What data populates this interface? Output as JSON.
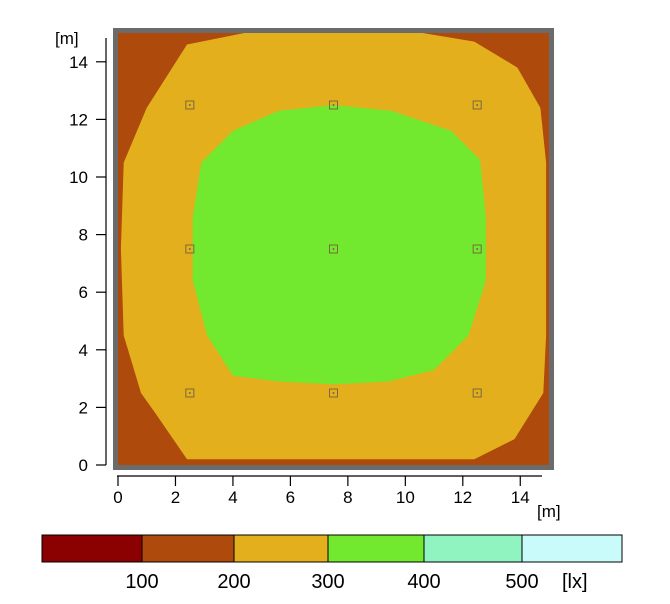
{
  "chart_data": {
    "type": "heatmap",
    "xlabel": "[m]",
    "ylabel": "[m]",
    "xlim": [
      0,
      15
    ],
    "ylim": [
      0,
      15
    ],
    "x_ticks": [
      0,
      2,
      4,
      6,
      8,
      10,
      12,
      14
    ],
    "y_ticks": [
      0,
      2,
      4,
      6,
      8,
      10,
      12,
      14
    ],
    "grid": false,
    "legend": {
      "placement": "bottom",
      "unit": "[lx]",
      "bins": [
        {
          "range": [
            0,
            100
          ],
          "color": "#8b0000"
        },
        {
          "range": [
            100,
            200
          ],
          "color": "#ad4a0c"
        },
        {
          "range": [
            200,
            300
          ],
          "color": "#e4af1c"
        },
        {
          "range": [
            300,
            400
          ],
          "color": "#72e82e"
        },
        {
          "range": [
            400,
            500
          ],
          "color": "#8ff4c0"
        },
        {
          "range": [
            500,
            600
          ],
          "color": "#c8fbfa"
        }
      ],
      "labels": [
        "100",
        "200",
        "300",
        "400",
        "500"
      ]
    },
    "zones": [
      {
        "level": "100-200",
        "color": "#ad4a0c",
        "polygon": [
          [
            0,
            0
          ],
          [
            15,
            0
          ],
          [
            15,
            15
          ],
          [
            0,
            15
          ]
        ]
      },
      {
        "level": "200-300",
        "color": "#e4af1c",
        "polygon": [
          [
            2.4,
            0.2
          ],
          [
            12.4,
            0.2
          ],
          [
            13.8,
            0.9
          ],
          [
            14.8,
            2.5
          ],
          [
            14.9,
            4.5
          ],
          [
            14.9,
            10.5
          ],
          [
            14.7,
            12.4
          ],
          [
            13.9,
            13.8
          ],
          [
            12.4,
            14.7
          ],
          [
            10.6,
            15
          ],
          [
            4.4,
            15
          ],
          [
            2.4,
            14.6
          ],
          [
            1,
            12.4
          ],
          [
            0.2,
            10.5
          ],
          [
            0.1,
            7.5
          ],
          [
            0.2,
            4.5
          ],
          [
            0.8,
            2.5
          ],
          [
            1.3,
            1.8
          ]
        ]
      },
      {
        "level": "300-400",
        "color": "#72e82e",
        "polygon": [
          [
            4,
            3.1
          ],
          [
            5.6,
            2.9
          ],
          [
            7.5,
            2.8
          ],
          [
            9.4,
            2.9
          ],
          [
            11,
            3.3
          ],
          [
            12.2,
            4.5
          ],
          [
            12.8,
            6.4
          ],
          [
            12.8,
            8.6
          ],
          [
            12.6,
            10.6
          ],
          [
            11.6,
            11.6
          ],
          [
            9.5,
            12.3
          ],
          [
            7.5,
            12.5
          ],
          [
            5.6,
            12.3
          ],
          [
            4,
            11.6
          ],
          [
            2.9,
            10.5
          ],
          [
            2.6,
            8.6
          ],
          [
            2.6,
            6.4
          ],
          [
            3.1,
            4.5
          ]
        ]
      }
    ],
    "luminaires": [
      {
        "x": 2.5,
        "y": 12.5
      },
      {
        "x": 7.5,
        "y": 12.5
      },
      {
        "x": 12.5,
        "y": 12.5
      },
      {
        "x": 2.5,
        "y": 7.5
      },
      {
        "x": 7.5,
        "y": 7.5
      },
      {
        "x": 12.5,
        "y": 7.5
      },
      {
        "x": 2.5,
        "y": 2.5
      },
      {
        "x": 7.5,
        "y": 2.5
      },
      {
        "x": 12.5,
        "y": 2.5
      }
    ],
    "frame_color": "#6b6b6b"
  }
}
